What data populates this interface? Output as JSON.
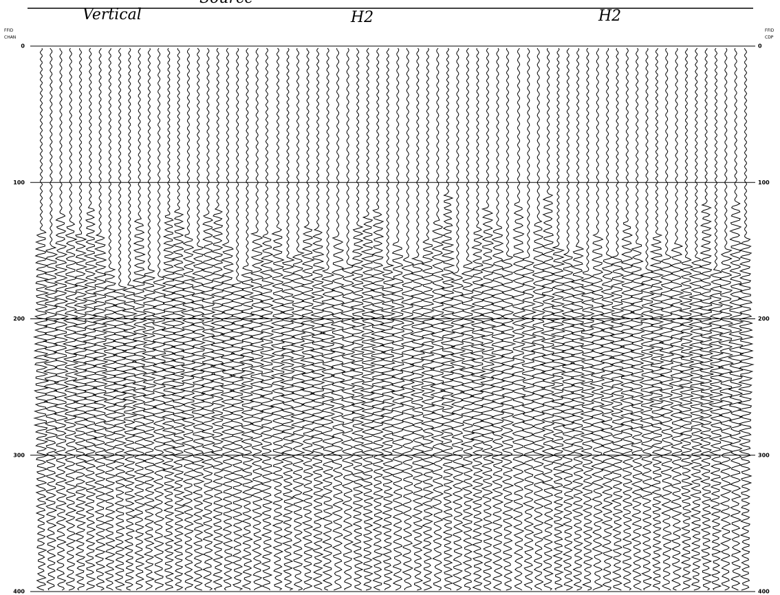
{
  "header": {
    "title": "Source"
  },
  "panels": [
    {
      "label": "Vertical"
    },
    {
      "label": "H2"
    },
    {
      "label": "H2"
    }
  ],
  "axis": {
    "left_label": [
      "FFID",
      "CHAN"
    ],
    "right_label": [
      "FFID",
      "CDP"
    ],
    "ticks": [
      0,
      100,
      200,
      300,
      400
    ]
  }
}
